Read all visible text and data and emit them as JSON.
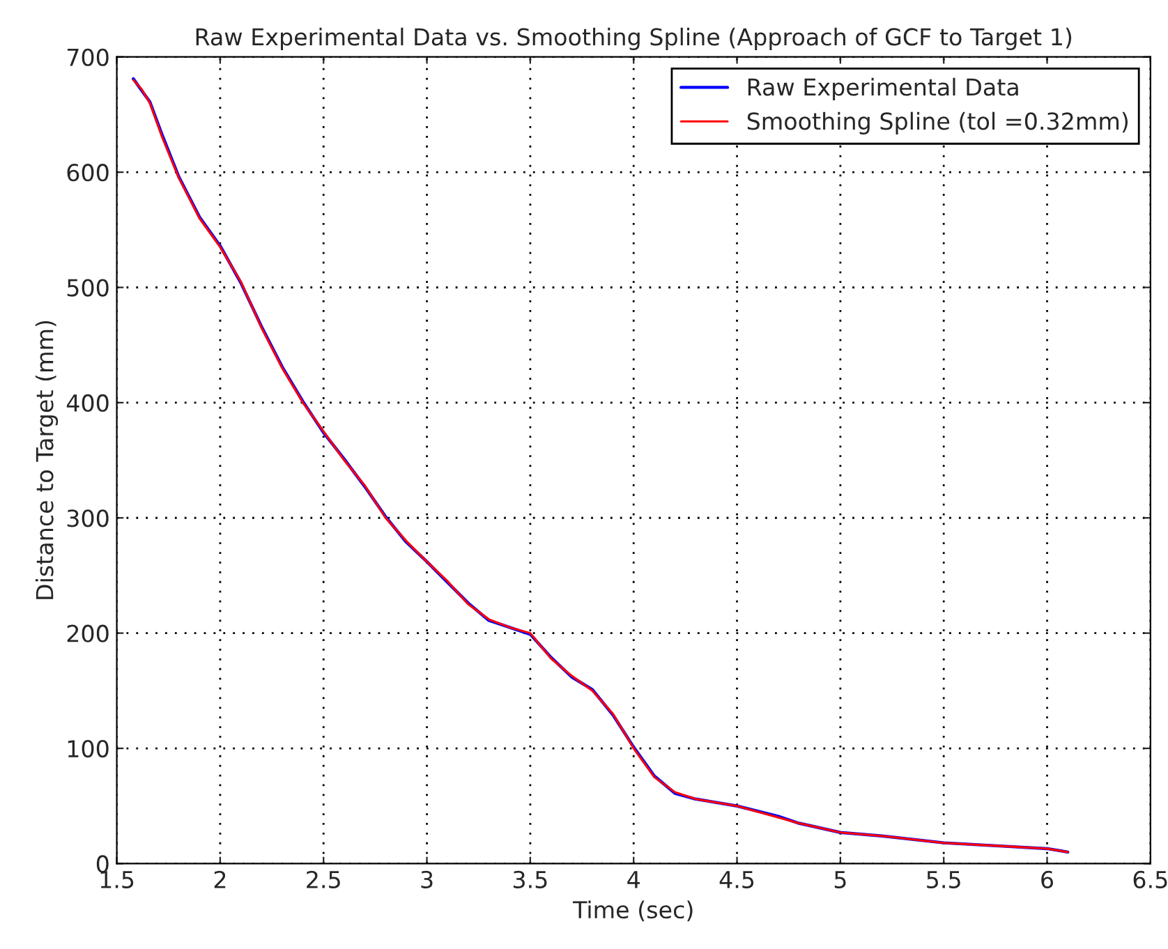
{
  "chart_data": {
    "type": "line",
    "title": "Raw Experimental Data vs. Smoothing Spline (Approach of GCF to Target 1)",
    "xlabel": "Time (sec)",
    "ylabel": "Distance to Target (mm)",
    "x": [
      1.58,
      1.62,
      1.66,
      1.72,
      1.8,
      1.9,
      2.0,
      2.1,
      2.2,
      2.3,
      2.4,
      2.5,
      2.6,
      2.7,
      2.8,
      2.9,
      3.0,
      3.1,
      3.2,
      3.3,
      3.4,
      3.5,
      3.6,
      3.7,
      3.8,
      3.9,
      4.0,
      4.1,
      4.2,
      4.3,
      4.5,
      4.7,
      4.8,
      5.0,
      5.2,
      5.5,
      5.8,
      6.0,
      6.1
    ],
    "series": [
      {
        "name": "Raw Experimental Data",
        "color": "#0000ff",
        "values": [
          681,
          671,
          661,
          632,
          596,
          561,
          536,
          504,
          466,
          431,
          401,
          374,
          351,
          327,
          301,
          279,
          262,
          244,
          226,
          211,
          205,
          199,
          179,
          162,
          151,
          129,
          101,
          76,
          61,
          56,
          50,
          41,
          35,
          27,
          24,
          18,
          15,
          13,
          10
        ]
      },
      {
        "name": "Smoothing Spline (tol =0.32mm)",
        "color": "#ff0000",
        "values": [
          680,
          672,
          660,
          630,
          595,
          560,
          535,
          505,
          465,
          430,
          400,
          375,
          350,
          328,
          300,
          280,
          262,
          245,
          225,
          212,
          205,
          200,
          178,
          163,
          150,
          130,
          100,
          75,
          62,
          56,
          50,
          40,
          35,
          27,
          24,
          18,
          15,
          13,
          10
        ]
      }
    ],
    "xlim": [
      1.5,
      6.5
    ],
    "xticks": [
      1.5,
      2,
      2.5,
      3,
      3.5,
      4,
      4.5,
      5,
      5.5,
      6,
      6.5
    ],
    "ylim": [
      0,
      700
    ],
    "yticks": [
      0,
      100,
      200,
      300,
      400,
      500,
      600,
      700
    ],
    "grid": true,
    "legend": "top right",
    "line_style": "solid",
    "marker": "none"
  }
}
